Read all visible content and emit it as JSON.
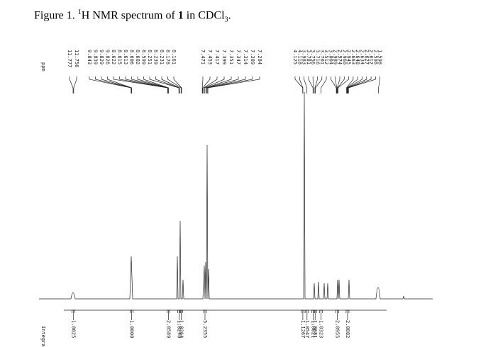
{
  "caption": {
    "label": "Figure 1. ",
    "sup": "1",
    "text": "H NMR spectrum of ",
    "compound": "1",
    "solvent": " in CDCl",
    "sub": "3",
    "end": "."
  },
  "axis_label": "ppm",
  "integral_label": "Integral",
  "peaks": [
    "11.777",
    "11.756",
    "9.843",
    "9.839",
    "9.829",
    "9.826",
    "8.622",
    "8.615",
    "8.613",
    "8.606",
    "8.602",
    "8.599",
    "8.251",
    "8.239",
    "8.231",
    "8.178",
    "8.161",
    "7.471",
    "7.453",
    "7.417",
    "7.399",
    "7.351",
    "7.347",
    "7.314",
    "7.309",
    "7.284",
    "4.125",
    "4.118",
    "3.983",
    "3.781",
    "3.756",
    "3.716",
    "3.701",
    "3.512",
    "3.004",
    "2.989",
    "2.974",
    "2.960",
    "2.945",
    "2.663",
    "2.648",
    "2.634",
    "2.627",
    "2.612",
    "2.598",
    "1.598"
  ],
  "integrals": [
    {
      "value": "1.0025",
      "ppm": 11.77
    },
    {
      "value": "1.0000",
      "ppm": 9.83
    },
    {
      "value": "2.0589",
      "ppm": 8.6
    },
    {
      "value": "1.0240",
      "ppm": 8.24
    },
    {
      "value": "1.0264",
      "ppm": 8.17
    },
    {
      "value": "5.2355",
      "ppm": 7.38
    },
    {
      "value": "1.1267",
      "ppm": 4.12
    },
    {
      "value": "1.0547",
      "ppm": 3.98
    },
    {
      "value": "1.0621",
      "ppm": 3.77
    },
    {
      "value": "1.0681",
      "ppm": 3.71
    },
    {
      "value": "1.0323",
      "ppm": 3.51
    },
    {
      "value": "2.0955",
      "ppm": 2.97
    },
    {
      "value": "2.0882",
      "ppm": 2.63
    }
  ]
}
